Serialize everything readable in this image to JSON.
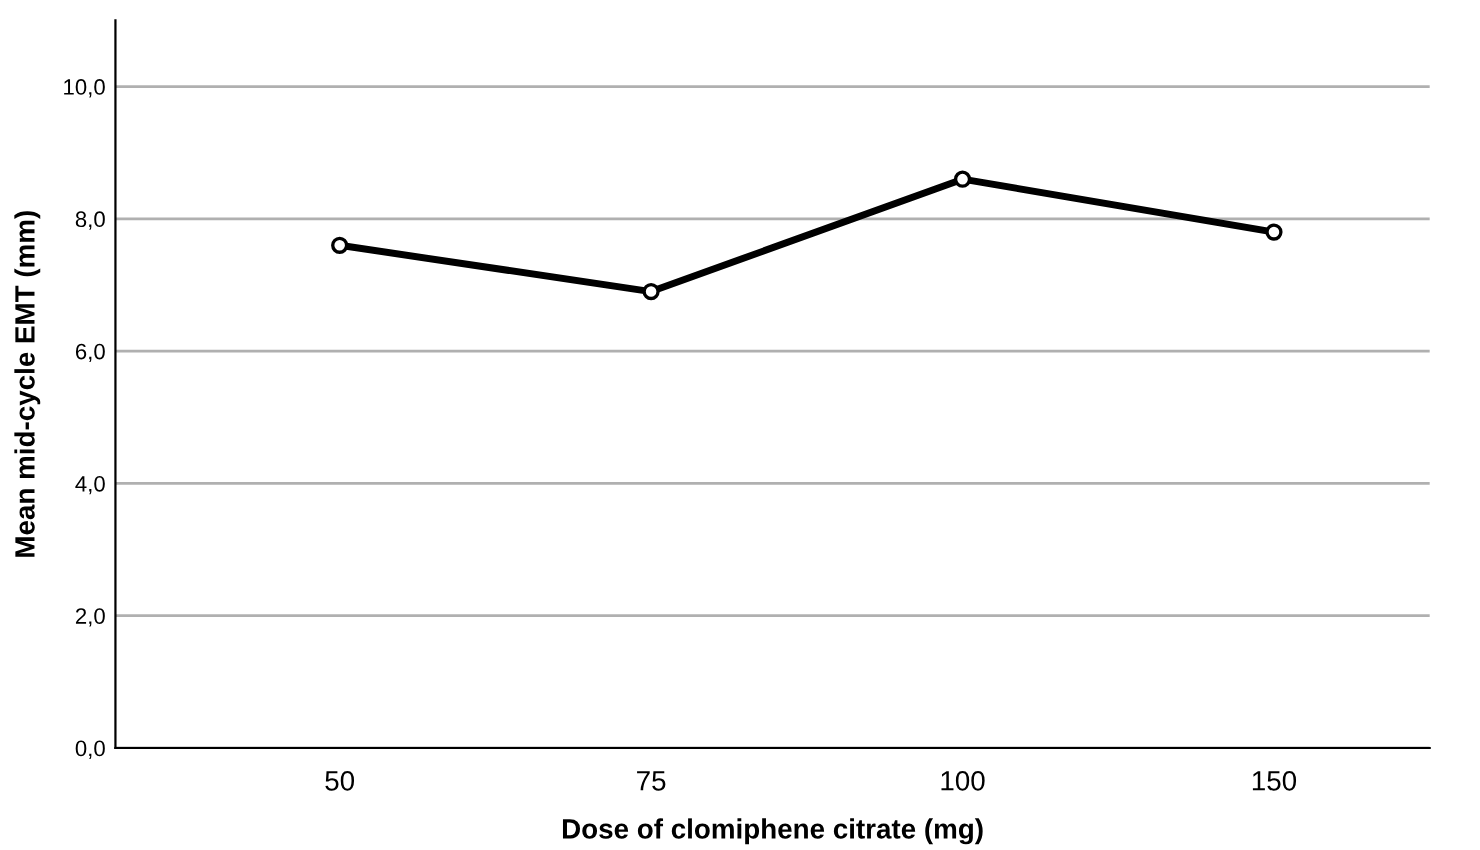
{
  "chart_data": {
    "type": "line",
    "xlabel": "Dose of clomiphene citrate (mg)",
    "ylabel": "Mean mid-cycle EMT (mm)",
    "categories": [
      "50",
      "75",
      "100",
      "150"
    ],
    "series": [
      {
        "color": "#000000",
        "values": [
          7.6,
          6.9,
          8.6,
          7.8
        ]
      }
    ],
    "ylim": [
      0,
      11
    ],
    "yticks": [
      {
        "value": 0,
        "label": "0,0"
      },
      {
        "value": 2,
        "label": "2,0"
      },
      {
        "value": 4,
        "label": "4,0"
      },
      {
        "value": 6,
        "label": "6,0"
      },
      {
        "value": 8,
        "label": "8,0"
      },
      {
        "value": 10,
        "label": "10,0"
      }
    ],
    "grid": "y",
    "marker": "circle",
    "line_style": "solid"
  }
}
